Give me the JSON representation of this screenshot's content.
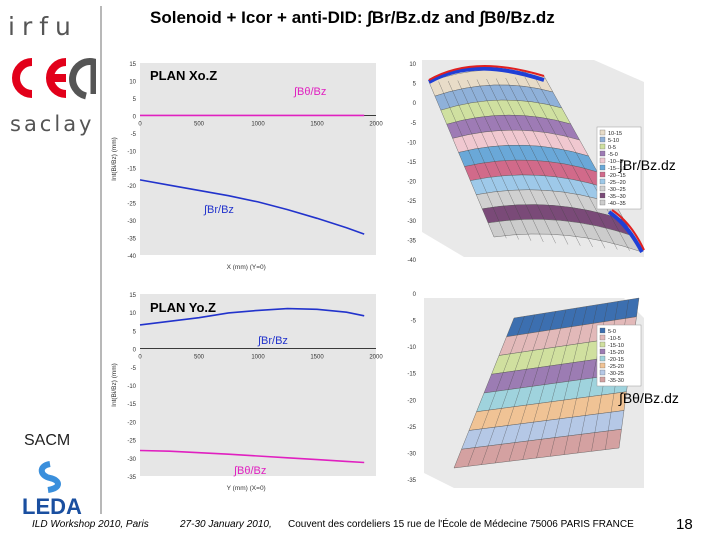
{
  "slide": {
    "title": "Solenoid + Icor + anti-DID:  ∫Br/Bz.dz and ∫Bθ/Bz.dz",
    "page_number": "18"
  },
  "sidebar": {
    "irfu": "irfu",
    "saclay": "saclay",
    "sacm": "SACM",
    "leda": "LEDA"
  },
  "footer": {
    "workshop": "ILD Workshop 2010, Paris",
    "dates": "27-30 January 2010,",
    "venue": "Couvent des cordeliers  15 rue de l'École de Médecine 75006 PARIS FRANCE"
  },
  "labels_3d": {
    "top": "∫Br/Bz.dz",
    "bottom": "∫Bθ/Bz.dz"
  },
  "colors": {
    "brt_curve": "#2233cc",
    "bth_curve": "#e020c0",
    "accent_3d": "#1f3fd6",
    "accent_3d_red": "#e02020"
  },
  "chart_data": [
    {
      "type": "line",
      "title": "PLAN Xo.Z",
      "xlabel": "X (mm)  (Y=0)",
      "ylabel": "Int(Bi/Bz) (mm)",
      "xlim": [
        0,
        2000
      ],
      "ylim": [
        -40,
        15
      ],
      "x_ticks": [
        "0",
        "500",
        "1000",
        "1500",
        "2000"
      ],
      "y_ticks": [
        "15",
        "10",
        "5",
        "0",
        "-5",
        "-10",
        "-15",
        "-20",
        "-25",
        "-30",
        "-35",
        "-40"
      ],
      "series": [
        {
          "name": "∫Bθ/Bz",
          "color": "#e020c0",
          "x": [
            0,
            500,
            1000,
            1500,
            1900
          ],
          "y": [
            0,
            0,
            0,
            0,
            0
          ]
        },
        {
          "name": "∫Br/Bz",
          "color": "#2233cc",
          "x": [
            0,
            250,
            500,
            750,
            1000,
            1250,
            1500,
            1750,
            1900
          ],
          "y": [
            -18.5,
            -20.0,
            -21.5,
            -23.0,
            -24.8,
            -27.0,
            -29.5,
            -32.2,
            -34.0
          ]
        }
      ]
    },
    {
      "type": "line",
      "title": "PLAN Yo.Z",
      "xlabel": "Y (mm) (X=0)",
      "ylabel": "Int(Bi/Bz) (mm)",
      "xlim": [
        0,
        2000
      ],
      "ylim": [
        -35,
        15
      ],
      "x_ticks": [
        "0",
        "500",
        "1000",
        "1500",
        "2000"
      ],
      "y_ticks": [
        "15",
        "10",
        "5",
        "0",
        "-5",
        "-10",
        "-15",
        "-20",
        "-25",
        "-30",
        "-35"
      ],
      "series": [
        {
          "name": "∫Br/Bz",
          "color": "#2233cc",
          "x": [
            0,
            250,
            500,
            750,
            1000,
            1250,
            1500,
            1750,
            1900
          ],
          "y": [
            6.5,
            7.5,
            8.5,
            9.8,
            10.5,
            11.0,
            10.8,
            10.0,
            9.0
          ]
        },
        {
          "name": "∫Bθ/Bz",
          "color": "#e020c0",
          "x": [
            0,
            250,
            500,
            750,
            1000,
            1250,
            1500,
            1750,
            1900
          ],
          "y": [
            -28.0,
            -28.2,
            -28.6,
            -29.0,
            -29.5,
            -30.0,
            -30.5,
            -31.0,
            -31.3
          ]
        }
      ]
    },
    {
      "type": "area",
      "title": "",
      "legend_title": "",
      "legend": [
        "10-15",
        "5-10",
        "0-5",
        "-5-0",
        "-10--5",
        "-15--10",
        "-20--15",
        "-25--20",
        "-30--25",
        "-35--30",
        "-40--35"
      ],
      "colors": [
        "#e8dcc8",
        "#8fb1d9",
        "#cfe0a0",
        "#9e7bb5",
        "#f0c8d0",
        "#6aa8d8",
        "#d16a8a",
        "#9ec9e9",
        "#d0d0d0",
        "#7a4a78",
        "#cccccc"
      ],
      "y_ticks": [
        "10",
        "5",
        "0",
        "-5",
        "-10",
        "-15",
        "-20",
        "-25",
        "-30",
        "-35",
        "-40"
      ]
    },
    {
      "type": "area",
      "title": "",
      "legend": [
        "5-0",
        "-10-5",
        "-15-10",
        "-15-20",
        "-20-15",
        "-25-20",
        "-30-25",
        "-35-30"
      ],
      "colors": [
        "#3c6fb0",
        "#e2b9b9",
        "#d0e09f",
        "#9c7cb3",
        "#9fd3dd",
        "#f0c395",
        "#b5c8e6",
        "#d4a1a1"
      ],
      "y_ticks": [
        "0",
        "-5",
        "-10",
        "-15",
        "-20",
        "-25",
        "-30",
        "-35"
      ]
    }
  ]
}
